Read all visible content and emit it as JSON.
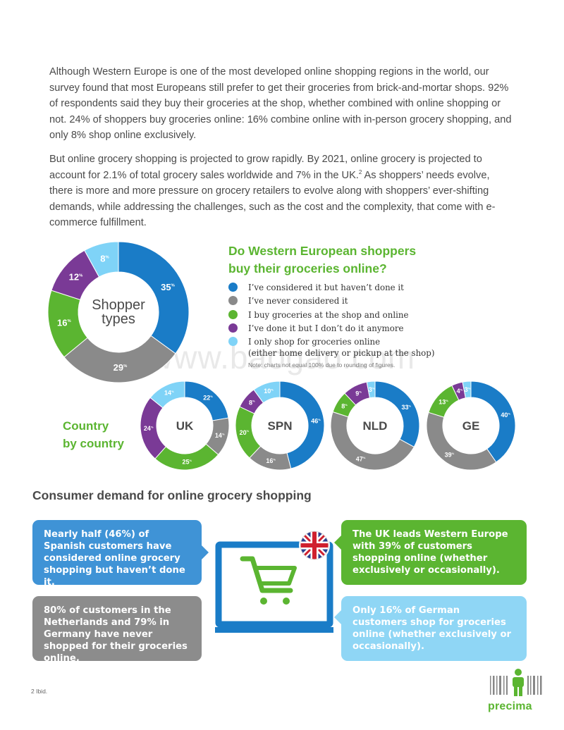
{
  "intro": {
    "paragraph1": "Although Western Europe is one of the most developed online shopping regions in the world, our survey found that most Europeans still prefer to get their groceries from brick-and-mortar shops. 92% of respondents said they buy their groceries at the shop, whether combined with online shopping or not. 24% of shoppers buy groceries online: 16% combine online with in-person grocery shopping, and only 8% shop online exclusively.",
    "paragraph2": "But online grocery shopping is projected to grow rapidly. By 2021, online grocery is projected to account for 2.1% of total grocery sales worldwide and 7% in the UK.",
    "paragraph2_sup": "2",
    "paragraph2_tail": " As shoppers’ needs evolve, there is more and more pressure on grocery retailers to evolve along with shoppers’ ever-shifting demands, while addressing the challenges, such as the cost and the complexity, that come with e-commerce fulfillment."
  },
  "question": {
    "line1": "Do Western European shoppers",
    "line2": "buy their groceries online?"
  },
  "note": "Note: charts not equal 100% due to rounding of figures.",
  "country_label": {
    "line1": "Country",
    "line2": "by country"
  },
  "section_title": "Consumer demand for online grocery shopping",
  "callouts": {
    "spain": "Nearly half (46%) of Spanish customers have considered online grocery shopping but haven’t done it.",
    "netherlands": "80% of customers in the Netherlands and 79% in Germany have never shopped for their groceries online.",
    "uk": "The UK leads Western Europe with 39% of customers shopping online (whether exclusively or occasionally).",
    "germany": "Only 16% of German customers shop for groceries online (whether exclusively or occasionally)."
  },
  "footnote": "2  Ibid.",
  "brand": "precima",
  "watermark": "www.baogao.com",
  "colors": {
    "considered": "#1a7cc7",
    "never": "#8a8a8a",
    "shop_and_online": "#5bb531",
    "not_anymore": "#7a3a96",
    "online_only": "#7fd3f7"
  },
  "chart_data": [
    {
      "type": "pie",
      "title": "Shopper types",
      "center_line1": "Shopper",
      "center_line2": "types",
      "categories": [
        "I’ve considered it but haven’t done it",
        "I’ve never considered it",
        "I buy groceries at the shop and online",
        "I’ve done it but I don’t do it anymore",
        "I only shop for groceries online (either home delivery or pickup at the shop)"
      ],
      "legend_lines": [
        [
          "I’ve considered it but haven’t done it"
        ],
        [
          "I’ve never considered it"
        ],
        [
          "I buy groceries at the shop and online"
        ],
        [
          "I’ve done it but I don’t do it anymore"
        ],
        [
          "I only shop for groceries online",
          "(either home delivery or pickup at the shop)"
        ]
      ],
      "values": [
        35,
        29,
        16,
        12,
        8
      ],
      "unit": "%"
    },
    {
      "type": "pie",
      "title": "UK",
      "values": [
        22,
        14,
        25,
        24,
        14
      ],
      "unit": "%"
    },
    {
      "type": "pie",
      "title": "SPN",
      "values": [
        46,
        16,
        20,
        8,
        10
      ],
      "unit": "%"
    },
    {
      "type": "pie",
      "title": "NLD",
      "values": [
        33,
        47,
        8,
        9,
        3
      ],
      "unit": "%"
    },
    {
      "type": "pie",
      "title": "GE",
      "values": [
        40,
        39,
        13,
        4,
        3
      ],
      "unit": "%"
    }
  ]
}
